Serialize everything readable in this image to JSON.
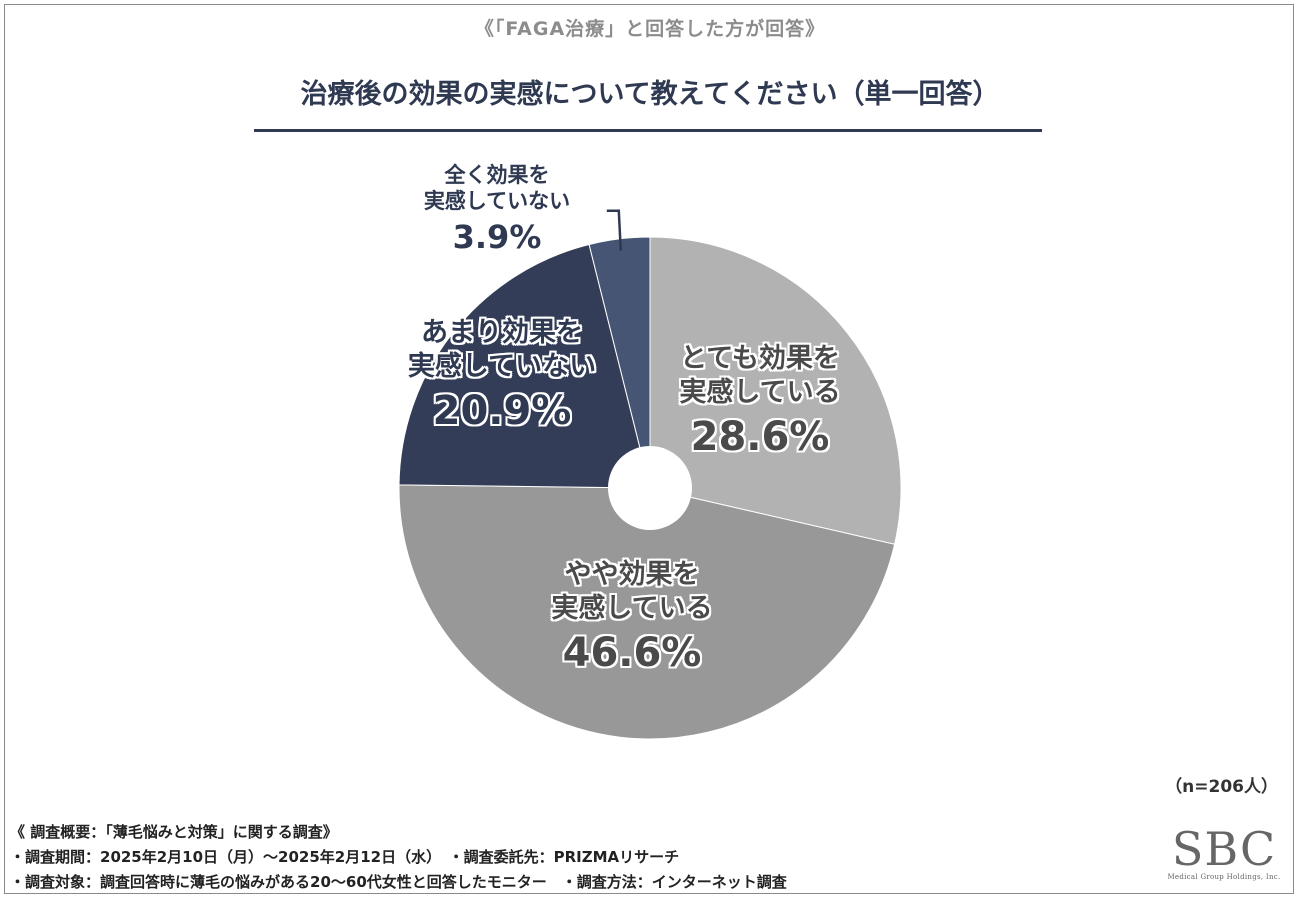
{
  "header": {
    "subtitle": "《「FAGA治療」と回答した方が回答》",
    "title": "治療後の効果の実感について教えてください（単一回答）"
  },
  "chart_data": {
    "type": "pie",
    "title": "治療後の効果の実感について教えてください（単一回答）",
    "donut_hole": true,
    "slices": [
      {
        "line1": "とても効果を",
        "line2": "実感している",
        "pct_label": "28.6%",
        "value": 28.6,
        "color": "#b2b2b2"
      },
      {
        "line1": "やや効果を",
        "line2": "実感している",
        "pct_label": "46.6%",
        "value": 46.6,
        "color": "#989898"
      },
      {
        "line1": "あまり効果を",
        "line2": "実感していない",
        "pct_label": "20.9%",
        "value": 20.9,
        "color": "#343d57"
      },
      {
        "line1": "全く効果を",
        "line2": "実感していない",
        "pct_label": "3.9%",
        "value": 3.9,
        "color": "#465573"
      }
    ],
    "sample_size": "（n=206人）"
  },
  "footer": {
    "line1": "《 調査概要：「薄毛悩みと対策」に関する調査》",
    "line2": "・調査期間：2025年2月10日（月）～2025年2月12日（水）　・調査委託先：PRIZMAリサーチ",
    "line3": "・調査対象：調査回答時に薄毛の悩みがある20～60代女性と回答したモニター　・調査方法：インターネット調査"
  },
  "logo": {
    "mark": "SBC",
    "sub": "Medical Group Holdings, Inc."
  }
}
